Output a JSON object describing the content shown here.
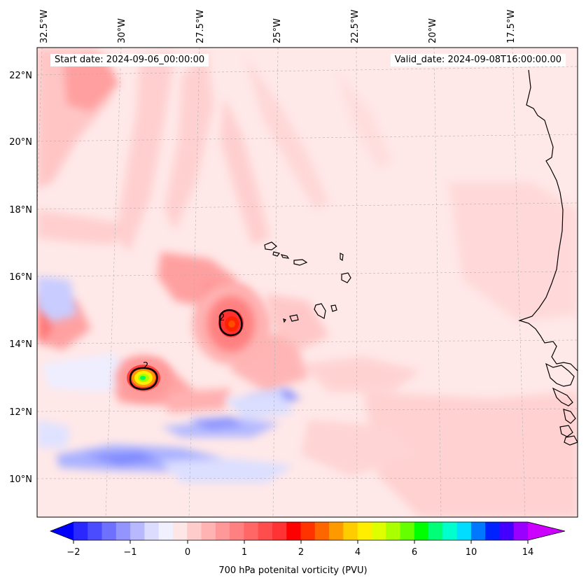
{
  "header": {
    "start_date": "Start date: 2024-09-06_00:00:00",
    "valid_date": "Valid_date: 2024-09-08T16:00:00.00"
  },
  "longitudes": [
    "32.5°W",
    "30°W",
    "27.5°W",
    "25°W",
    "22.5°W",
    "20°W",
    "17.5°W"
  ],
  "latitudes": [
    "22°N",
    "20°N",
    "18°N",
    "16°N",
    "14°N",
    "12°N",
    "10°N"
  ],
  "colorbar": {
    "title": "700 hPa potenital vorticity (PVU)",
    "tick_labels": [
      "−2",
      "−1",
      "0",
      "1",
      "2",
      "4",
      "6",
      "10",
      "14"
    ],
    "colors": [
      "#0000ff",
      "#2828ff",
      "#4c4cff",
      "#7070ff",
      "#9494ff",
      "#b8b8ff",
      "#dcdcff",
      "#f0f0ff",
      "#ffe6e6",
      "#ffcccc",
      "#ffb3b3",
      "#ff9999",
      "#ff8080",
      "#ff6666",
      "#ff4d4d",
      "#ff3333",
      "#ff0000",
      "#ff3300",
      "#ff6600",
      "#ff9900",
      "#ffcc00",
      "#ffee00",
      "#ddff00",
      "#aaff00",
      "#66ff00",
      "#00ff00",
      "#00ff77",
      "#00ffcc",
      "#00ddff",
      "#0077ff",
      "#0022ff",
      "#4400ff",
      "#9900ff",
      "#cc00ff"
    ]
  },
  "contour_labels": [
    "2",
    "2"
  ],
  "colors": {
    "background": "#ffe8e8",
    "land_outline": "#000000",
    "grid": "#b0b0b0"
  }
}
